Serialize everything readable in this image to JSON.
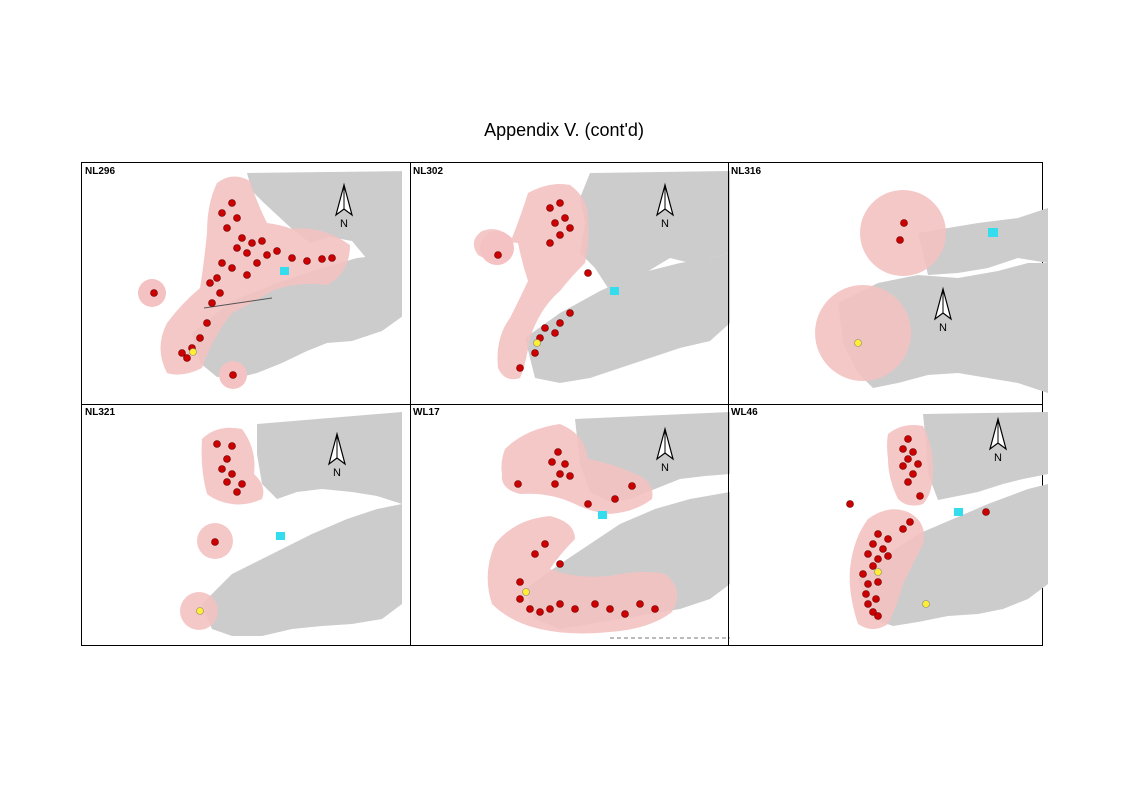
{
  "page": {
    "title": "Appendix V.  (cont'd)"
  },
  "colors": {
    "land": "#cccccc",
    "home_range": "#f4c2c2",
    "location_point": "#cc0000",
    "yellow_point": "#ffee33",
    "reservoir": "#33ddee"
  },
  "north_arrow": {
    "label": "N"
  },
  "panels": [
    {
      "id": "NL296",
      "label": "NL296"
    },
    {
      "id": "NL302",
      "label": "NL302"
    },
    {
      "id": "NL316",
      "label": "NL316"
    },
    {
      "id": "NL321",
      "label": "NL321"
    },
    {
      "id": "WL17",
      "label": "WL17"
    },
    {
      "id": "WL46",
      "label": "WL46"
    }
  ]
}
